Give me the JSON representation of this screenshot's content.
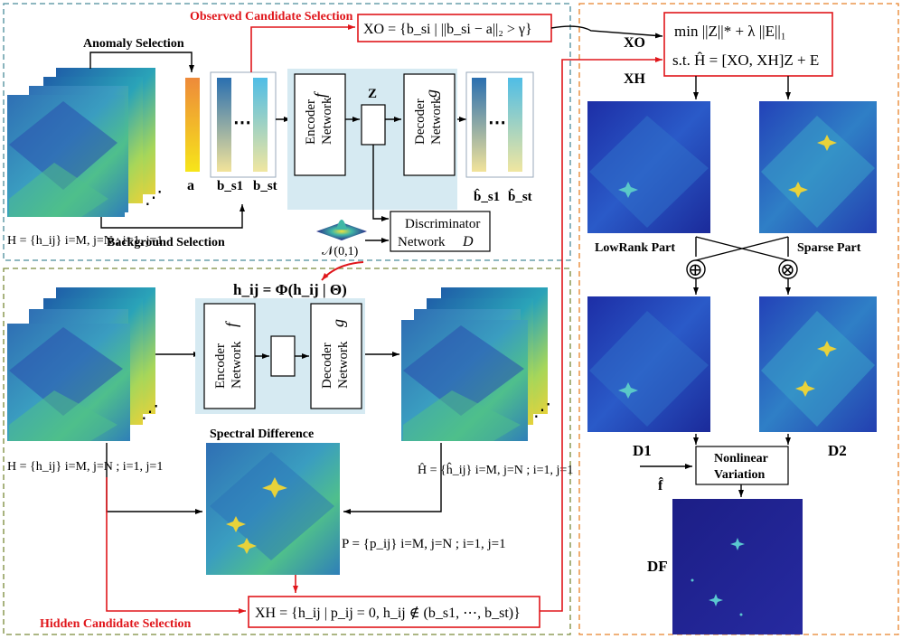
{
  "top_panel": {
    "observed_caption": "Observed Candidate Selection",
    "anomaly_selection": "Anomaly Selection",
    "background_selection": "Background Selection",
    "h_def": "H = {h_ij} i=M, j=N ; i=1, j=1",
    "a_label": "a",
    "bs1_label": "b_s1",
    "bst_label": "b_st",
    "bhat_s1_label": "b̂_s1",
    "bhat_st_label": "b̂_st",
    "encoder_line1": "Encoder",
    "encoder_line2": "Network",
    "encoder_symbol": "f",
    "z_label": "Z",
    "decoder_line1": "Decoder",
    "decoder_line2": "Network",
    "decoder_symbol": "g",
    "discriminator_line1": "Discriminator",
    "discriminator_line2": "Network",
    "discriminator_symbol": "D",
    "normal_label": "𝒩(0,1)",
    "xo_formula": "XO = {b_si | ||b_si − a||₂ > γ}"
  },
  "bottom_panel": {
    "hij_formula": "h_ij = Φ(h_ij | Θ)",
    "encoder_line1": "Encoder",
    "encoder_line2": "Network",
    "encoder_symbol": "f",
    "decoder_line1": "Decoder",
    "decoder_line2": "Network",
    "decoder_symbol": "g",
    "spectral_difference": "Spectral Difference",
    "h_def": "H = {h_ij} i=M, j=N ; i=1, j=1",
    "hhat_def": "Ĥ = {ĥ_ij} i=M, j=N ; i=1, j=1",
    "p_def": "P = {p_ij} i=M, j=N ; i=1, j=1",
    "xh_formula": "XH = {h_ij | p_ij = 0,  h_ij ∉ (b_s1, ⋯, b_st)}",
    "hidden_caption": "Hidden Candidate Selection"
  },
  "right_panel": {
    "xo_label": "XO",
    "xh_label": "XH",
    "objective_line1": "min ||Z||* + λ ||E||₁",
    "objective_line2": "s.t. Ĥ = [XO, XH]Z + E",
    "lowrank_label": "LowRank Part",
    "sparse_label": "Sparse Part",
    "plus_op": "⊕",
    "times_op": "⊗",
    "d1_label": "D1",
    "d2_label": "D2",
    "f_hat_label": "f̂",
    "nonlinear_line1": "Nonlinear",
    "nonlinear_line2": "Variation",
    "df_label": "DF"
  },
  "colors": {
    "highlight_red": "#e0161b",
    "top_panel_border": "#4a8c9a",
    "bottom_panel_border": "#7a8a3a",
    "right_panel_border": "#e8822a",
    "network_fill": "#d6eaf2"
  }
}
